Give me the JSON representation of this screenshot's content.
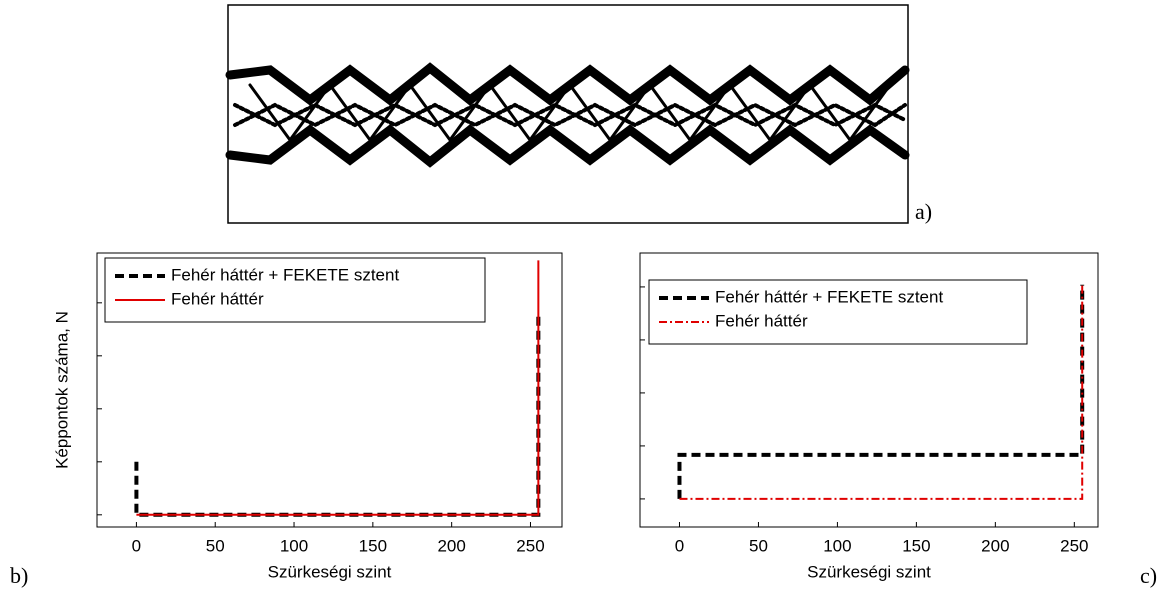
{
  "image_label": "a)",
  "chart_data": [
    {
      "type": "line",
      "label": "b)",
      "xlabel": "Szürkeségi szint",
      "ylabel": "Képpontok száma, N",
      "xlim": [
        -25,
        270
      ],
      "xticks": [
        0,
        50,
        100,
        150,
        200,
        250
      ],
      "ylim": [
        -0.23,
        4.94
      ],
      "yticks": [
        0,
        1,
        2,
        3,
        4
      ],
      "show_ytick_labels": false,
      "legend": "upper left",
      "series": [
        {
          "name": "Fehér háttér + FEKETE sztent",
          "color": "#000000",
          "dash": "dashed",
          "x": [
            0,
            0,
            255,
            255
          ],
          "values": [
            1,
            0,
            0,
            3.8
          ]
        },
        {
          "name": "Fehér háttér",
          "color": "#e00000",
          "dash": "solid",
          "x": [
            0,
            255,
            255
          ],
          "values": [
            0,
            0,
            4.8
          ]
        }
      ]
    },
    {
      "type": "line",
      "label": "c)",
      "xlabel": "Szürkeségi szint",
      "xlim": [
        -25,
        265
      ],
      "xticks": [
        0,
        50,
        100,
        150,
        200,
        250
      ],
      "ylim": [
        -0.53,
        4.64
      ],
      "yticks": [
        0,
        1,
        2,
        3,
        4
      ],
      "show_ytick_labels": false,
      "legend": "upper left",
      "series": [
        {
          "name": "Fehér háttér + FEKETE sztent",
          "color": "#000000",
          "dash": "dashed",
          "x": [
            0,
            0,
            255,
            255
          ],
          "values": [
            0,
            0.83,
            0.83,
            4.04
          ]
        },
        {
          "name": "Fehér háttér",
          "color": "#e00000",
          "dash": "dashdot",
          "x": [
            0,
            255,
            255
          ],
          "values": [
            0,
            0,
            4.04
          ]
        }
      ]
    }
  ]
}
